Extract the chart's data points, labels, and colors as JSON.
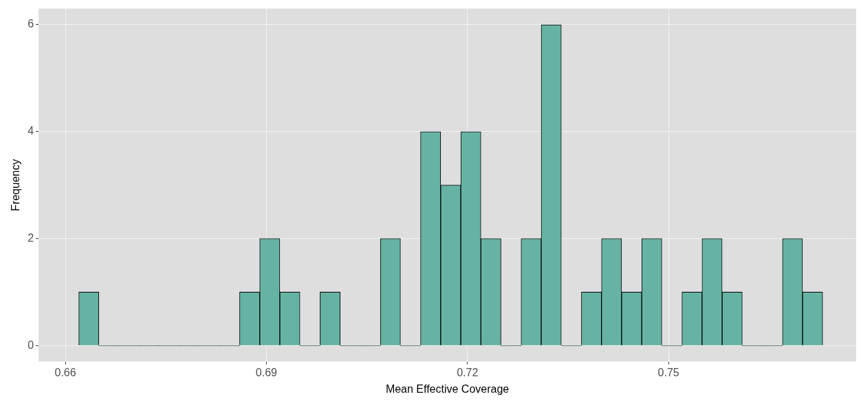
{
  "chart_data": {
    "type": "histogram",
    "xlabel": "Mean Effective Coverage",
    "ylabel": "Frequency",
    "bins": [
      0.662,
      0.665,
      0.668,
      0.671,
      0.674,
      0.677,
      0.68,
      0.683,
      0.686,
      0.689,
      0.692,
      0.695,
      0.698,
      0.701,
      0.704,
      0.707,
      0.71,
      0.713,
      0.716,
      0.719,
      0.722,
      0.725,
      0.728,
      0.731,
      0.734,
      0.737,
      0.74,
      0.743,
      0.746,
      0.749,
      0.752,
      0.755,
      0.758,
      0.761,
      0.764,
      0.767,
      0.77,
      0.773
    ],
    "values": [
      1,
      0,
      0,
      0,
      0,
      0,
      0,
      0,
      1,
      2,
      1,
      0,
      1,
      0,
      0,
      2,
      0,
      4,
      3,
      4,
      2,
      0,
      2,
      6,
      0,
      1,
      2,
      1,
      2,
      0,
      1,
      2,
      1,
      0,
      0,
      2,
      1
    ],
    "color": "#66b3a3",
    "xlim": [
      0.656,
      0.778
    ],
    "xticks": [
      0.66,
      0.69,
      0.72,
      0.75
    ],
    "ylim": [
      -0.3,
      6.3
    ],
    "yticks": [
      0,
      2,
      4,
      6
    ],
    "grid": true,
    "legend": false
  }
}
